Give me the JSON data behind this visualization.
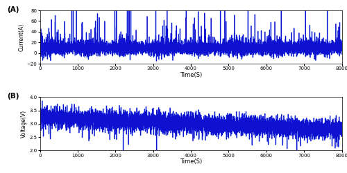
{
  "title_A": "(A)",
  "title_B": "(B)",
  "xlabel": "Time(S)",
  "ylabel_A": "Current(A)",
  "ylabel_B": "Voltage(V)",
  "xlim": [
    0,
    8000
  ],
  "ylim_A": [
    -20,
    80
  ],
  "ylim_B": [
    2,
    4
  ],
  "yticks_A": [
    -20,
    0,
    20,
    40,
    60,
    80
  ],
  "yticks_B": [
    2,
    2.5,
    3,
    3.5,
    4
  ],
  "xticks_A": [
    0,
    1000,
    2000,
    3000,
    4000,
    5000,
    6000,
    7000,
    8000
  ],
  "xticks_B": [
    0,
    1000,
    2000,
    3000,
    4000,
    5000,
    6000,
    7000,
    8000
  ],
  "line_color_dark": "#0000CC",
  "line_color_light": "#6688EE",
  "background_color": "#ffffff",
  "seed": 42,
  "n_points": 8000
}
